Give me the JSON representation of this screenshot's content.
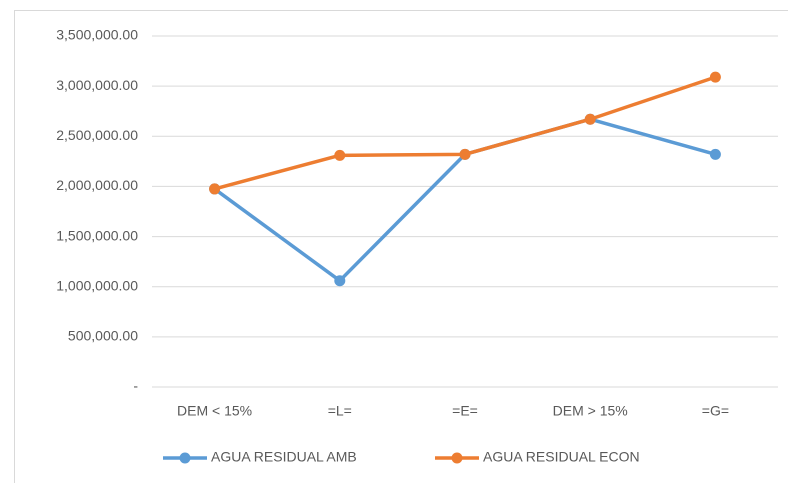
{
  "chart_data": {
    "type": "line",
    "categories": [
      "DEM < 15%",
      "=L=",
      "=E=",
      "DEM > 15%",
      "=G="
    ],
    "series": [
      {
        "name": "AGUA RESIDUAL AMB",
        "color": "#5b9bd5",
        "values": [
          1975000,
          1060000,
          2320000,
          2670000,
          2320000
        ]
      },
      {
        "name": "AGUA RESIDUAL ECON",
        "color": "#ed7d31",
        "values": [
          1975000,
          2310000,
          2320000,
          2670000,
          3090000
        ]
      }
    ],
    "ylim": [
      0,
      3500000
    ],
    "yticks": [
      {
        "value": 0,
        "label": "-"
      },
      {
        "value": 500000,
        "label": "500,000.00"
      },
      {
        "value": 1000000,
        "label": "1,000,000.00"
      },
      {
        "value": 1500000,
        "label": "1,500,000.00"
      },
      {
        "value": 2000000,
        "label": "2,000,000.00"
      },
      {
        "value": 2500000,
        "label": "2,500,000.00"
      },
      {
        "value": 3000000,
        "label": "3,000,000.00"
      },
      {
        "value": 3500000,
        "label": "3,500,000.00"
      }
    ],
    "grid": true,
    "legend": "bottom"
  }
}
